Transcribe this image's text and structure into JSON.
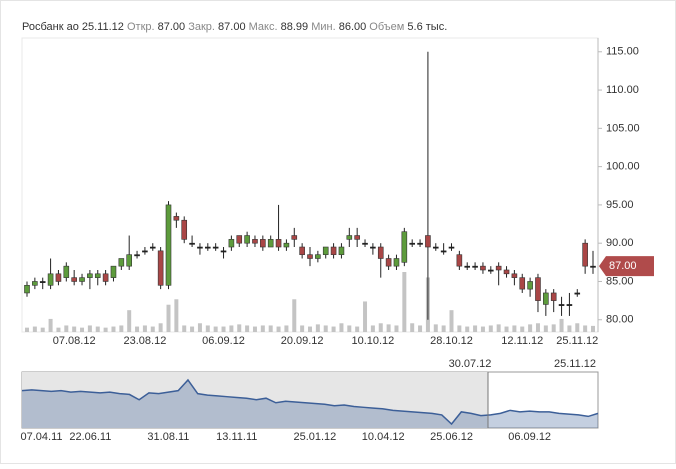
{
  "header": {
    "name": "Росбанк ао",
    "date": "25.11.12",
    "open_label": "Откр.",
    "open": "87.00",
    "close_label": "Закр.",
    "close": "87.00",
    "high_label": "Макс.",
    "high": "88.99",
    "low_label": "Мин.",
    "low": "86.00",
    "volume_label": "Объем",
    "volume": "5.6 тыс."
  },
  "chart_data": [
    {
      "type": "candlestick",
      "categories": [
        null,
        null,
        null,
        null,
        null,
        null,
        "07.08.12",
        null,
        null,
        null,
        null,
        null,
        null,
        null,
        null,
        "23.08.12",
        null,
        null,
        null,
        null,
        null,
        null,
        null,
        null,
        null,
        "06.09.12",
        null,
        null,
        null,
        null,
        null,
        null,
        null,
        null,
        null,
        "20.09.12",
        null,
        null,
        null,
        null,
        null,
        null,
        null,
        null,
        "10.10.12",
        null,
        null,
        null,
        null,
        null,
        null,
        null,
        null,
        null,
        "28.10.12",
        null,
        null,
        null,
        null,
        null,
        null,
        null,
        null,
        "12.11.12",
        null,
        null,
        null,
        null,
        null,
        null,
        "25.11.12",
        null,
        null
      ],
      "open": [
        83.5,
        84.5,
        85,
        84.5,
        86,
        85.5,
        85.5,
        85,
        85.5,
        85.5,
        86,
        85.5,
        87,
        87,
        88.5,
        89,
        89.5,
        89,
        84.5,
        93.5,
        93,
        90,
        89.5,
        89.5,
        89.5,
        89,
        89.5,
        91,
        90,
        90.5,
        90.5,
        89.5,
        90.5,
        89.5,
        91,
        89.5,
        88.5,
        88,
        88.5,
        89.5,
        88.5,
        90.5,
        91,
        90,
        89.5,
        89.5,
        88,
        87,
        87.5,
        90,
        90,
        91,
        89.5,
        89,
        89.5,
        88.5,
        87,
        87,
        87,
        86.5,
        87,
        86.5,
        86,
        85.5,
        84,
        85.5,
        82,
        83.5,
        82,
        82,
        83.5,
        90,
        87
      ],
      "high": [
        85,
        85.5,
        85.5,
        88,
        86.5,
        87.5,
        86.5,
        86,
        86.5,
        86.5,
        86.5,
        87,
        88,
        91,
        89,
        89.5,
        90,
        89.5,
        95.5,
        94,
        93.5,
        91,
        90,
        90,
        90,
        89.5,
        91,
        91,
        91.5,
        91,
        91,
        91,
        95,
        90.5,
        92,
        90,
        89.5,
        89,
        89.5,
        90,
        90,
        92,
        92,
        90.5,
        90,
        90,
        88.5,
        88.5,
        92,
        90.5,
        90.5,
        115,
        90,
        90,
        90,
        89,
        87.5,
        87.5,
        87.5,
        87,
        87.5,
        87,
        86.5,
        86,
        85.5,
        86,
        84,
        84,
        83,
        83.5,
        84,
        90.5,
        88.99
      ],
      "low": [
        83,
        84,
        84,
        84,
        84.5,
        85,
        84.5,
        84.5,
        84,
        84.5,
        84.5,
        85,
        86.5,
        86.5,
        88,
        88.5,
        89,
        84,
        84,
        92,
        90,
        89.5,
        88.5,
        89,
        89,
        88,
        89,
        89.5,
        89.5,
        89.5,
        89,
        89.5,
        89,
        89,
        89.5,
        88,
        87,
        87.5,
        88,
        88,
        88,
        89.5,
        89.5,
        89.5,
        88.5,
        85.5,
        86.5,
        86.5,
        87,
        89.5,
        89.5,
        80,
        89,
        88.5,
        89,
        86.5,
        86.5,
        86.5,
        86,
        86,
        84.5,
        85.5,
        84.5,
        83.5,
        83,
        81,
        80.5,
        81,
        80.5,
        80.5,
        83,
        86,
        86
      ],
      "close": [
        84.5,
        85,
        85,
        86,
        85,
        87,
        85,
        85.5,
        86,
        86,
        85,
        87,
        88,
        88.5,
        88.5,
        89,
        89.5,
        84.5,
        95,
        93,
        90.5,
        90,
        89.5,
        89.5,
        89.5,
        89,
        90.5,
        90,
        91,
        90,
        89.5,
        90.5,
        89.5,
        90,
        90.5,
        88.5,
        88,
        88.5,
        89.5,
        88.5,
        89.5,
        91,
        90.5,
        90,
        89.5,
        88,
        87,
        88,
        91.5,
        90,
        90,
        89.5,
        89.5,
        89,
        89.5,
        87,
        87,
        87,
        86.5,
        86.5,
        86.5,
        86,
        85.5,
        84,
        85,
        82.5,
        83.5,
        82.5,
        82,
        82,
        83.5,
        87,
        87
      ],
      "volume": [
        4,
        5,
        4,
        12,
        4,
        6,
        5,
        4,
        6,
        5,
        4,
        5,
        6,
        20,
        5,
        6,
        5,
        8,
        25,
        30,
        6,
        5,
        8,
        6,
        5,
        5,
        6,
        7,
        6,
        5,
        6,
        6,
        5,
        6,
        30,
        6,
        5,
        7,
        6,
        5,
        8,
        6,
        5,
        28,
        6,
        8,
        7,
        6,
        55,
        8,
        6,
        50,
        7,
        6,
        20,
        6,
        5,
        6,
        5,
        6,
        7,
        5,
        6,
        5,
        7,
        8,
        6,
        7,
        12,
        6,
        8,
        6,
        5.6
      ],
      "ylim": [
        78.4,
        116.8
      ],
      "yticks": [
        {
          "value": 80,
          "label": "80.00"
        },
        {
          "value": 85,
          "label": "85.00"
        },
        {
          "value": 90,
          "label": "90.00"
        },
        {
          "value": 95,
          "label": "95.00"
        },
        {
          "value": 100,
          "label": "100.00"
        },
        {
          "value": 105,
          "label": "105.00"
        },
        {
          "value": 110,
          "label": "110.00"
        },
        {
          "value": 115,
          "label": "115.00"
        }
      ],
      "last_price": {
        "value": 87,
        "label": "87.00"
      },
      "up_color": "#5d9b3c",
      "down_color": "#a94646",
      "volume_color": "#c4c4c4"
    },
    {
      "type": "area",
      "categories": [
        null,
        null,
        "07.04.11",
        null,
        null,
        null,
        null,
        "22.06.11",
        null,
        null,
        null,
        null,
        null,
        null,
        null,
        "31.08.11",
        null,
        null,
        null,
        null,
        null,
        null,
        "13.11.11",
        null,
        null,
        null,
        null,
        null,
        null,
        null,
        "25.01.12",
        null,
        null,
        null,
        null,
        null,
        null,
        "10.04.12",
        null,
        null,
        null,
        null,
        null,
        null,
        "25.06.12",
        null,
        null,
        null,
        null,
        null,
        null,
        null,
        "06.09.12",
        null,
        null,
        null,
        null,
        null,
        null,
        null
      ],
      "values": [
        117,
        117.5,
        117,
        116.5,
        117,
        116,
        116.5,
        116,
        115.5,
        116,
        115,
        114.5,
        111,
        115.5,
        115,
        116,
        117,
        124,
        115,
        114,
        113.5,
        113,
        112.5,
        112,
        111,
        112,
        109,
        110,
        109.5,
        109,
        108.5,
        108,
        107,
        107.5,
        106.5,
        106,
        105.5,
        105,
        104,
        103.5,
        103,
        102.5,
        102,
        101,
        95,
        103,
        102,
        100.5,
        101,
        102,
        104,
        103,
        103.5,
        103,
        103,
        102,
        101.5,
        101,
        100,
        102
      ],
      "window": {
        "start": "30.07.12",
        "end": "25.11.12"
      },
      "color": "#3c5f98"
    }
  ]
}
